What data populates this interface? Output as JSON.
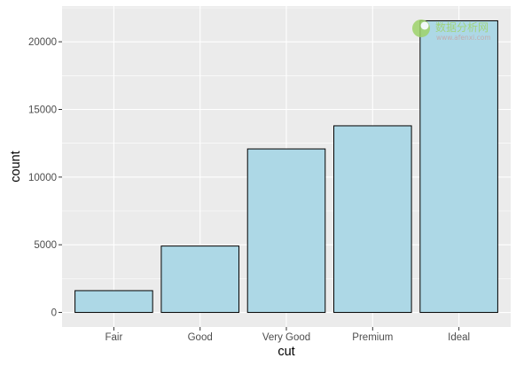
{
  "chart_data": {
    "type": "bar",
    "categories": [
      "Fair",
      "Good",
      "Very Good",
      "Premium",
      "Ideal"
    ],
    "values": [
      1610,
      4906,
      12082,
      13791,
      21551
    ],
    "xlabel": "cut",
    "ylabel": "count",
    "ylim": [
      -1077.55,
      22628.55
    ],
    "yticks": [
      0,
      5000,
      10000,
      15000,
      20000
    ],
    "ytick_labels": [
      "0",
      "5000",
      "10000",
      "15000",
      "20000"
    ],
    "grid": true,
    "legend": "none",
    "colors": {
      "bar_fill": "#add8e6",
      "bar_stroke": "#000000",
      "panel_bg": "#ebebeb",
      "grid_major": "#ffffff",
      "tick_text": "#4d4d4d"
    }
  },
  "watermark": {
    "text": "数据分析网",
    "subtext": "www.afenxi.com",
    "color": "#9ed36a"
  }
}
